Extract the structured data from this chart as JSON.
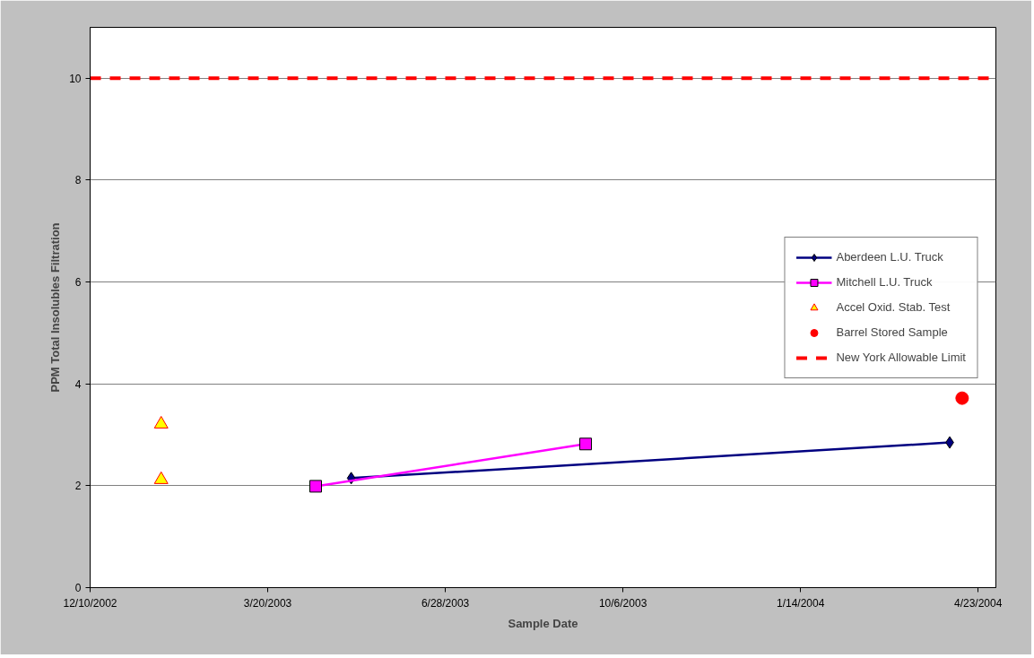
{
  "chart_data": {
    "type": "line",
    "xlabel": "Sample Date",
    "ylabel": "PPM Total Insolubles Filtration",
    "xlim": [
      "2002-12-10",
      "2004-05-03"
    ],
    "xticks": [
      {
        "value": "2002-12-10",
        "label": "12/10/2002"
      },
      {
        "value": "2003-03-20",
        "label": "3/20/2003"
      },
      {
        "value": "2003-06-28",
        "label": "6/28/2003"
      },
      {
        "value": "2003-10-06",
        "label": "10/6/2003"
      },
      {
        "value": "2004-01-14",
        "label": "1/14/2004"
      },
      {
        "value": "2004-04-23",
        "label": "4/23/2004"
      }
    ],
    "ylim": [
      0,
      11
    ],
    "yticks": [
      0,
      2,
      4,
      6,
      8,
      10
    ],
    "grid": "y",
    "legend": "right",
    "series": [
      {
        "name": "Aberdeen L.U. Truck",
        "marker": "diamond",
        "color": "#000080",
        "x": [
          "2003-05-06",
          "2004-04-07"
        ],
        "values": [
          2.15,
          2.85
        ]
      },
      {
        "name": "Mitchell L.U. Truck",
        "marker": "square",
        "color": "#ff00ff",
        "x": [
          "2003-04-16",
          "2003-09-15"
        ],
        "values": [
          1.99,
          2.82
        ]
      },
      {
        "name": "Accel Oxid. Stab. Test",
        "type": "scatter",
        "marker": "triangle",
        "color": "#ffff00",
        "x": [
          "2003-01-19",
          "2003-01-19"
        ],
        "values": [
          3.21,
          2.12
        ]
      },
      {
        "name": "Barrel Stored Sample",
        "type": "scatter",
        "marker": "circle",
        "color": "#ff0000",
        "x": [
          "2004-04-14"
        ],
        "values": [
          3.72
        ]
      }
    ],
    "ref_lines": [
      {
        "axis": "y",
        "value": 10,
        "label": "New York Allowable Limit",
        "color": "#ff0000",
        "line_style": "dashed"
      }
    ]
  }
}
